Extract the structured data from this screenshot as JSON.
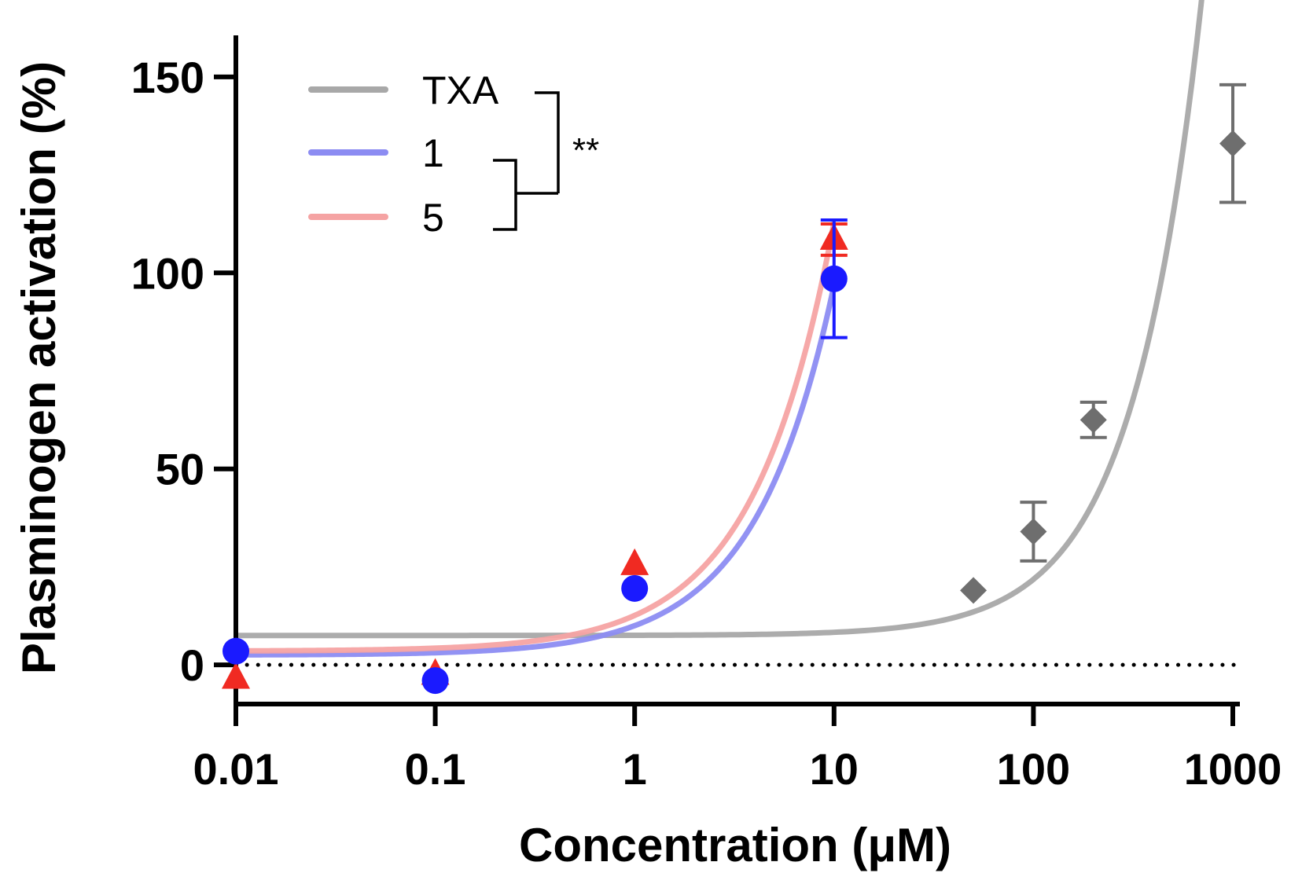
{
  "chart_data": {
    "type": "scatter",
    "title": "",
    "xlabel": "Concentration (μM)",
    "ylabel": "Plasminogen activation (%)",
    "xscale": "log",
    "xlim": [
      0.01,
      1000
    ],
    "ylim": [
      -10,
      160
    ],
    "xticks": [
      {
        "value": 0.01,
        "label": "0.01"
      },
      {
        "value": 0.1,
        "label": "0.1"
      },
      {
        "value": 1,
        "label": "1"
      },
      {
        "value": 10,
        "label": "10"
      },
      {
        "value": 100,
        "label": "100"
      },
      {
        "value": 1000,
        "label": "1000"
      }
    ],
    "yticks": [
      {
        "value": 0,
        "label": "0"
      },
      {
        "value": 50,
        "label": "50"
      },
      {
        "value": 100,
        "label": "100"
      },
      {
        "value": 150,
        "label": "150"
      }
    ],
    "reference_line": {
      "y": 0,
      "style": "dotted"
    },
    "legend": {
      "position": "top-left",
      "significance": "**"
    },
    "series": [
      {
        "name": "TXA",
        "line_color": "#a8a8a8",
        "marker": "diamond",
        "marker_color": "#6e6e6e",
        "points": [
          {
            "x": 50,
            "y": 19,
            "err": 0
          },
          {
            "x": 100,
            "y": 34,
            "err": 7.5
          },
          {
            "x": 200,
            "y": 62.5,
            "err": 4.5
          },
          {
            "x": 1000,
            "y": 133,
            "err": 15
          }
        ],
        "fit": {
          "bottom": 7.5,
          "x_at_100": 445,
          "hill": 1.25,
          "x_range": [
            0.01,
            1000
          ]
        }
      },
      {
        "name": "1",
        "line_color": "#8c8cf2",
        "marker": "circle",
        "marker_color": "#1a1aff",
        "points": [
          {
            "x": 0.01,
            "y": 3.5,
            "err": 0
          },
          {
            "x": 0.1,
            "y": -4,
            "err": 0
          },
          {
            "x": 1,
            "y": 19.5,
            "err": 0
          },
          {
            "x": 10,
            "y": 98.5,
            "err": 15
          }
        ],
        "fit": {
          "bottom": 2.5,
          "x_at_100": 10.3,
          "hill": 1.1,
          "x_range": [
            0.01,
            10
          ]
        }
      },
      {
        "name": "5",
        "line_color": "#f5a3a3",
        "marker": "triangle",
        "marker_color": "#f02a22",
        "points": [
          {
            "x": 0.01,
            "y": -3.5,
            "err": 0
          },
          {
            "x": 0.1,
            "y": -2.5,
            "err": 0
          },
          {
            "x": 1,
            "y": 25.5,
            "err": 0
          },
          {
            "x": 10,
            "y": 108.5,
            "err": 4
          }
        ],
        "fit": {
          "bottom": 3.5,
          "x_at_100": 8.9,
          "hill": 1.08,
          "x_range": [
            0.01,
            10
          ]
        }
      }
    ]
  }
}
